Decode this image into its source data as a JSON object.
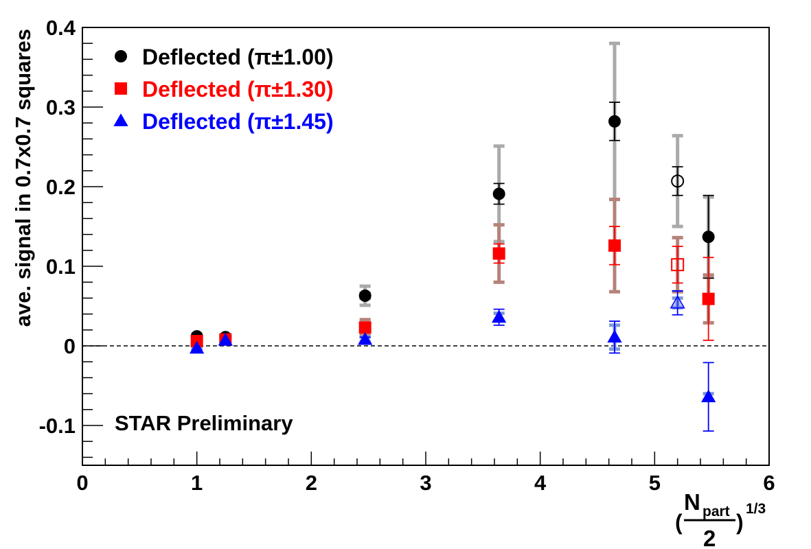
{
  "chart_data": {
    "type": "scatter",
    "ylabel": "ave. signal in 0.7x0.7 squares",
    "xlabel": {
      "prefix": "(",
      "numerator": "N",
      "numerator_sub": "part",
      "denominator": "2",
      "suffix": ")",
      "exponent": "1/3"
    },
    "xlim": [
      0,
      6
    ],
    "ylim": [
      -0.15,
      0.4
    ],
    "x_ticks": [
      0,
      1,
      2,
      3,
      4,
      5,
      6
    ],
    "y_ticks": [
      -0.1,
      0,
      0.1,
      0.2,
      0.3,
      0.4
    ],
    "x_tick_labels": [
      "0",
      "1",
      "2",
      "3",
      "4",
      "5",
      "6"
    ],
    "y_tick_labels": [
      "-0.1",
      "0",
      "0.1",
      "0.2",
      "0.3",
      "0.4"
    ],
    "zero_line": true,
    "grid": false,
    "legend_position": "top-left",
    "annotation": {
      "text": "STAR Preliminary",
      "color": "#ff0000"
    },
    "series": [
      {
        "name": "Deflected (π±1.00)",
        "color": "#000000",
        "marker": "circle",
        "sys_color": "#aaaaaa",
        "points": [
          {
            "x": 1.0,
            "y": 0.012,
            "stat": 0.002,
            "sys": 0.003
          },
          {
            "x": 1.25,
            "y": 0.011,
            "stat": 0.002,
            "sys": 0.003
          },
          {
            "x": 2.47,
            "y": 0.063,
            "stat": 0.004,
            "sys": 0.012
          },
          {
            "x": 3.64,
            "y": 0.191,
            "stat": 0.013,
            "sys": 0.06
          },
          {
            "x": 4.65,
            "y": 0.282,
            "stat": 0.024,
            "sys": 0.098
          },
          {
            "x": 5.2,
            "y": 0.207,
            "stat": 0.018,
            "sys": 0.057,
            "open": true
          },
          {
            "x": 5.47,
            "y": 0.137,
            "stat": 0.052,
            "sys": 0.05
          }
        ]
      },
      {
        "name": "Deflected (π±1.30)",
        "color": "#ff0000",
        "marker": "square",
        "sys_color": "#b5837b",
        "points": [
          {
            "x": 1.0,
            "y": 0.006,
            "stat": 0.002,
            "sys": 0.003
          },
          {
            "x": 1.25,
            "y": 0.008,
            "stat": 0.002,
            "sys": 0.003
          },
          {
            "x": 2.47,
            "y": 0.023,
            "stat": 0.004,
            "sys": 0.01
          },
          {
            "x": 3.64,
            "y": 0.116,
            "stat": 0.012,
            "sys": 0.036
          },
          {
            "x": 4.65,
            "y": 0.126,
            "stat": 0.024,
            "sys": 0.058
          },
          {
            "x": 5.2,
            "y": 0.102,
            "stat": 0.023,
            "sys": 0.034,
            "open": true
          },
          {
            "x": 5.47,
            "y": 0.059,
            "stat": 0.052,
            "sys": 0.03
          }
        ]
      },
      {
        "name": "Deflected (π±1.45)",
        "color": "#0000ff",
        "marker": "triangle",
        "sys_color": "#7f9bd6",
        "points": [
          {
            "x": 1.0,
            "y": -0.003,
            "stat": 0.002,
            "sys": 0.002
          },
          {
            "x": 1.25,
            "y": 0.007,
            "stat": 0.002,
            "sys": 0.002
          },
          {
            "x": 2.47,
            "y": 0.008,
            "stat": 0.003,
            "sys": 0.003
          },
          {
            "x": 3.64,
            "y": 0.036,
            "stat": 0.01,
            "sys": 0.005
          },
          {
            "x": 4.65,
            "y": 0.011,
            "stat": 0.02,
            "sys": 0.015
          },
          {
            "x": 5.2,
            "y": 0.054,
            "stat": 0.015,
            "sys": 0.006,
            "open": true
          },
          {
            "x": 5.47,
            "y": -0.064,
            "stat": 0.043,
            "sys": 0.004
          }
        ]
      }
    ]
  }
}
